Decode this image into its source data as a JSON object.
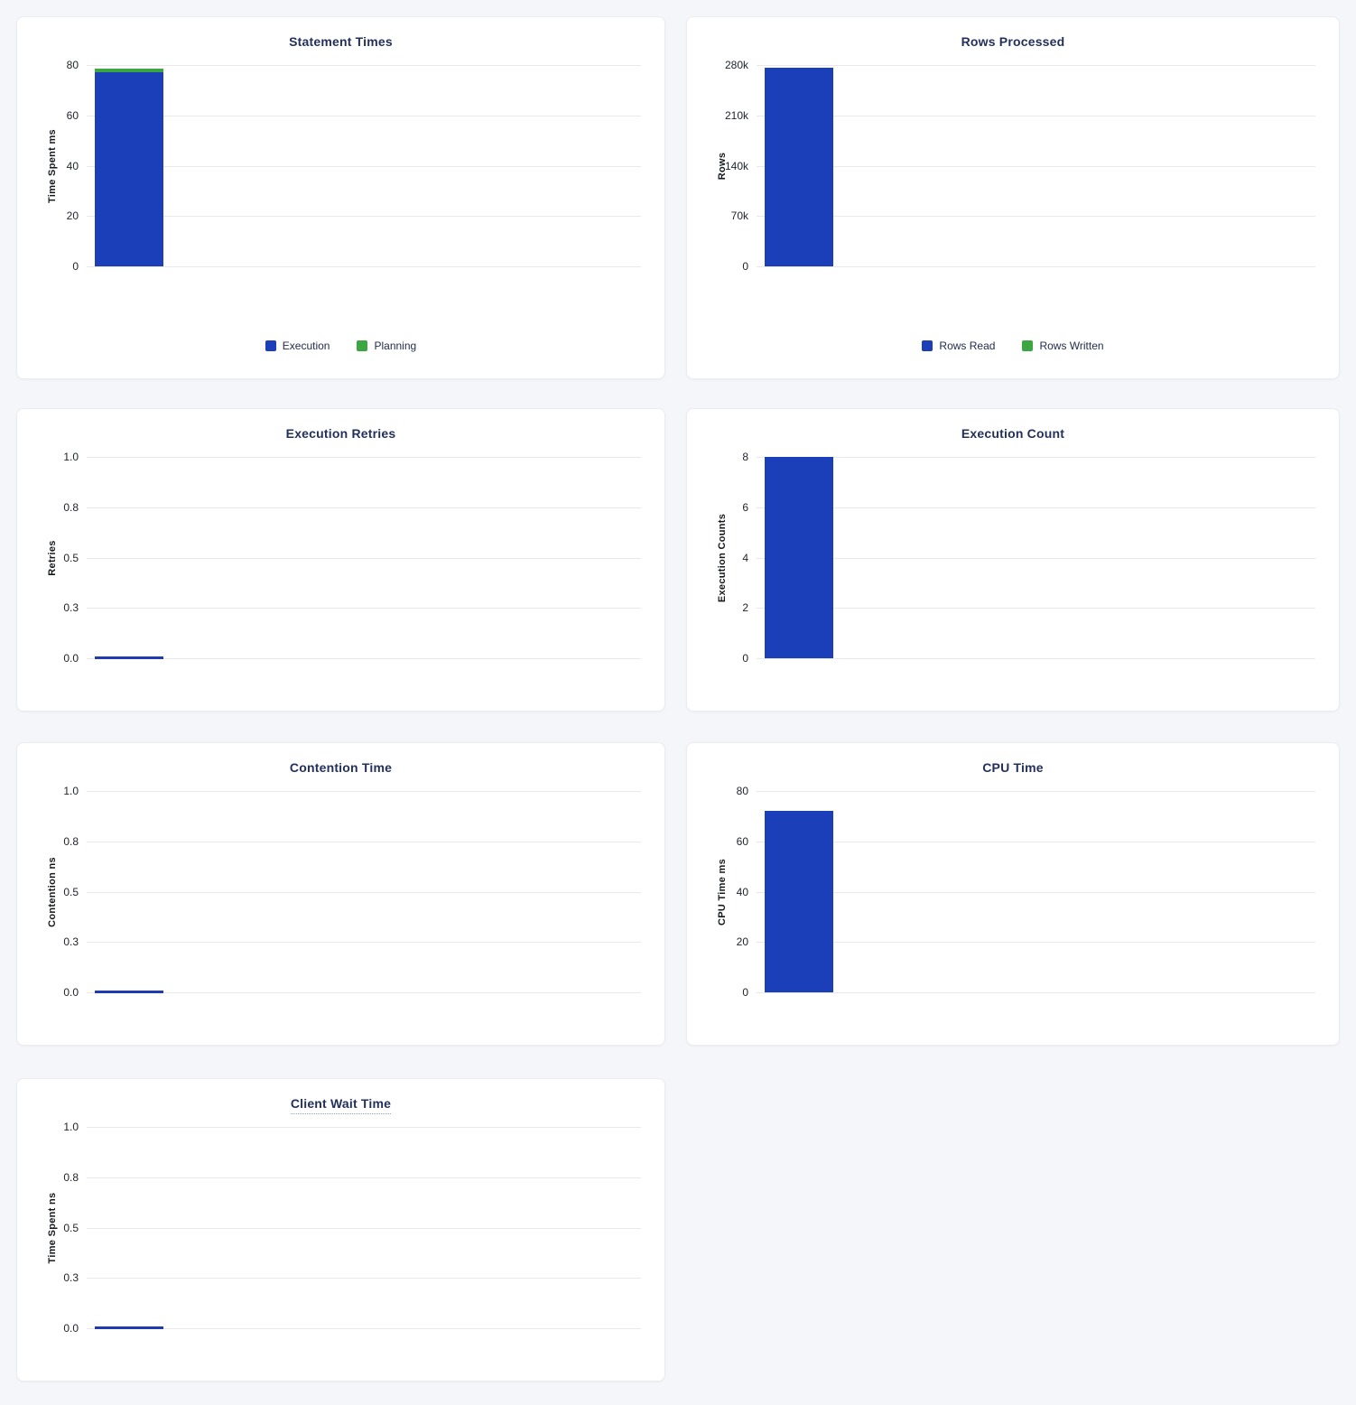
{
  "page": {
    "background_color": "#f4f6f9",
    "panel_background": "#ffffff",
    "panel_border_color": "#e9ecf2",
    "gridline_color": "#e9e9eb",
    "title_color": "#23305c",
    "tick_color": "#1e2229",
    "bar_blue": "#1a3fb8",
    "bar_green": "#3ca642",
    "zero_line_color": "#1f3bb3"
  },
  "chart_data": [
    {
      "type": "bar",
      "title": "Statement Times",
      "ylabel": "Time Spent ms",
      "ylim": [
        0,
        80
      ],
      "yticks": [
        0,
        20,
        40,
        60,
        80
      ],
      "ytick_labels": [
        "0",
        "20",
        "40",
        "60",
        "80"
      ],
      "categories": [
        ""
      ],
      "stacked": true,
      "grid": true,
      "legend_position": "bottom",
      "series": [
        {
          "name": "Execution",
          "color": "#1a3fb8",
          "values": [
            77
          ]
        },
        {
          "name": "Planning",
          "color": "#3ca642",
          "values": [
            1.4
          ]
        }
      ]
    },
    {
      "type": "bar",
      "title": "Rows Processed",
      "ylabel": "Rows",
      "ylim": [
        0,
        280000
      ],
      "yticks": [
        0,
        70000,
        140000,
        210000,
        280000
      ],
      "ytick_labels": [
        "0",
        "70k",
        "140k",
        "210k",
        "280k"
      ],
      "categories": [
        ""
      ],
      "stacked": true,
      "grid": true,
      "legend_position": "bottom",
      "series": [
        {
          "name": "Rows Read",
          "color": "#1a3fb8",
          "values": [
            276000
          ]
        },
        {
          "name": "Rows Written",
          "color": "#3ca642",
          "values": [
            0
          ]
        }
      ]
    },
    {
      "type": "bar",
      "title": "Execution Retries",
      "ylabel": "Retries",
      "ylim": [
        0,
        1
      ],
      "yticks": [
        0,
        0.25,
        0.5,
        0.75,
        1
      ],
      "ytick_labels": [
        "0.0",
        "0.3",
        "0.5",
        "0.8",
        "1.0"
      ],
      "categories": [
        ""
      ],
      "stacked": false,
      "grid": true,
      "legend_position": "none",
      "series": [
        {
          "name": "Retries",
          "color": "#1a3fb8",
          "values": [
            0
          ]
        }
      ]
    },
    {
      "type": "bar",
      "title": "Execution Count",
      "ylabel": "Execution Counts",
      "ylim": [
        0,
        8
      ],
      "yticks": [
        0,
        2,
        4,
        6,
        8
      ],
      "ytick_labels": [
        "0",
        "2",
        "4",
        "6",
        "8"
      ],
      "categories": [
        ""
      ],
      "stacked": false,
      "grid": true,
      "legend_position": "none",
      "series": [
        {
          "name": "Execution Count",
          "color": "#1a3fb8",
          "values": [
            8
          ]
        }
      ]
    },
    {
      "type": "bar",
      "title": "Contention Time",
      "ylabel": "Contention ns",
      "ylim": [
        0,
        1
      ],
      "yticks": [
        0,
        0.25,
        0.5,
        0.75,
        1
      ],
      "ytick_labels": [
        "0.0",
        "0.3",
        "0.5",
        "0.8",
        "1.0"
      ],
      "categories": [
        ""
      ],
      "stacked": false,
      "grid": true,
      "legend_position": "none",
      "series": [
        {
          "name": "Contention",
          "color": "#1a3fb8",
          "values": [
            0
          ]
        }
      ]
    },
    {
      "type": "bar",
      "title": "CPU Time",
      "ylabel": "CPU Time ms",
      "ylim": [
        0,
        80
      ],
      "yticks": [
        0,
        20,
        40,
        60,
        80
      ],
      "ytick_labels": [
        "0",
        "20",
        "40",
        "60",
        "80"
      ],
      "categories": [
        ""
      ],
      "stacked": false,
      "grid": true,
      "legend_position": "none",
      "series": [
        {
          "name": "CPU Time",
          "color": "#1a3fb8",
          "values": [
            72
          ]
        }
      ]
    },
    {
      "type": "bar",
      "title": "Client Wait Time",
      "title_underlined": true,
      "ylabel": "Time Spent ns",
      "ylim": [
        0,
        1
      ],
      "yticks": [
        0,
        0.25,
        0.5,
        0.75,
        1
      ],
      "ytick_labels": [
        "0.0",
        "0.3",
        "0.5",
        "0.8",
        "1.0"
      ],
      "categories": [
        ""
      ],
      "stacked": false,
      "grid": true,
      "legend_position": "none",
      "series": [
        {
          "name": "Client Wait",
          "color": "#1a3fb8",
          "values": [
            0
          ]
        }
      ]
    }
  ]
}
